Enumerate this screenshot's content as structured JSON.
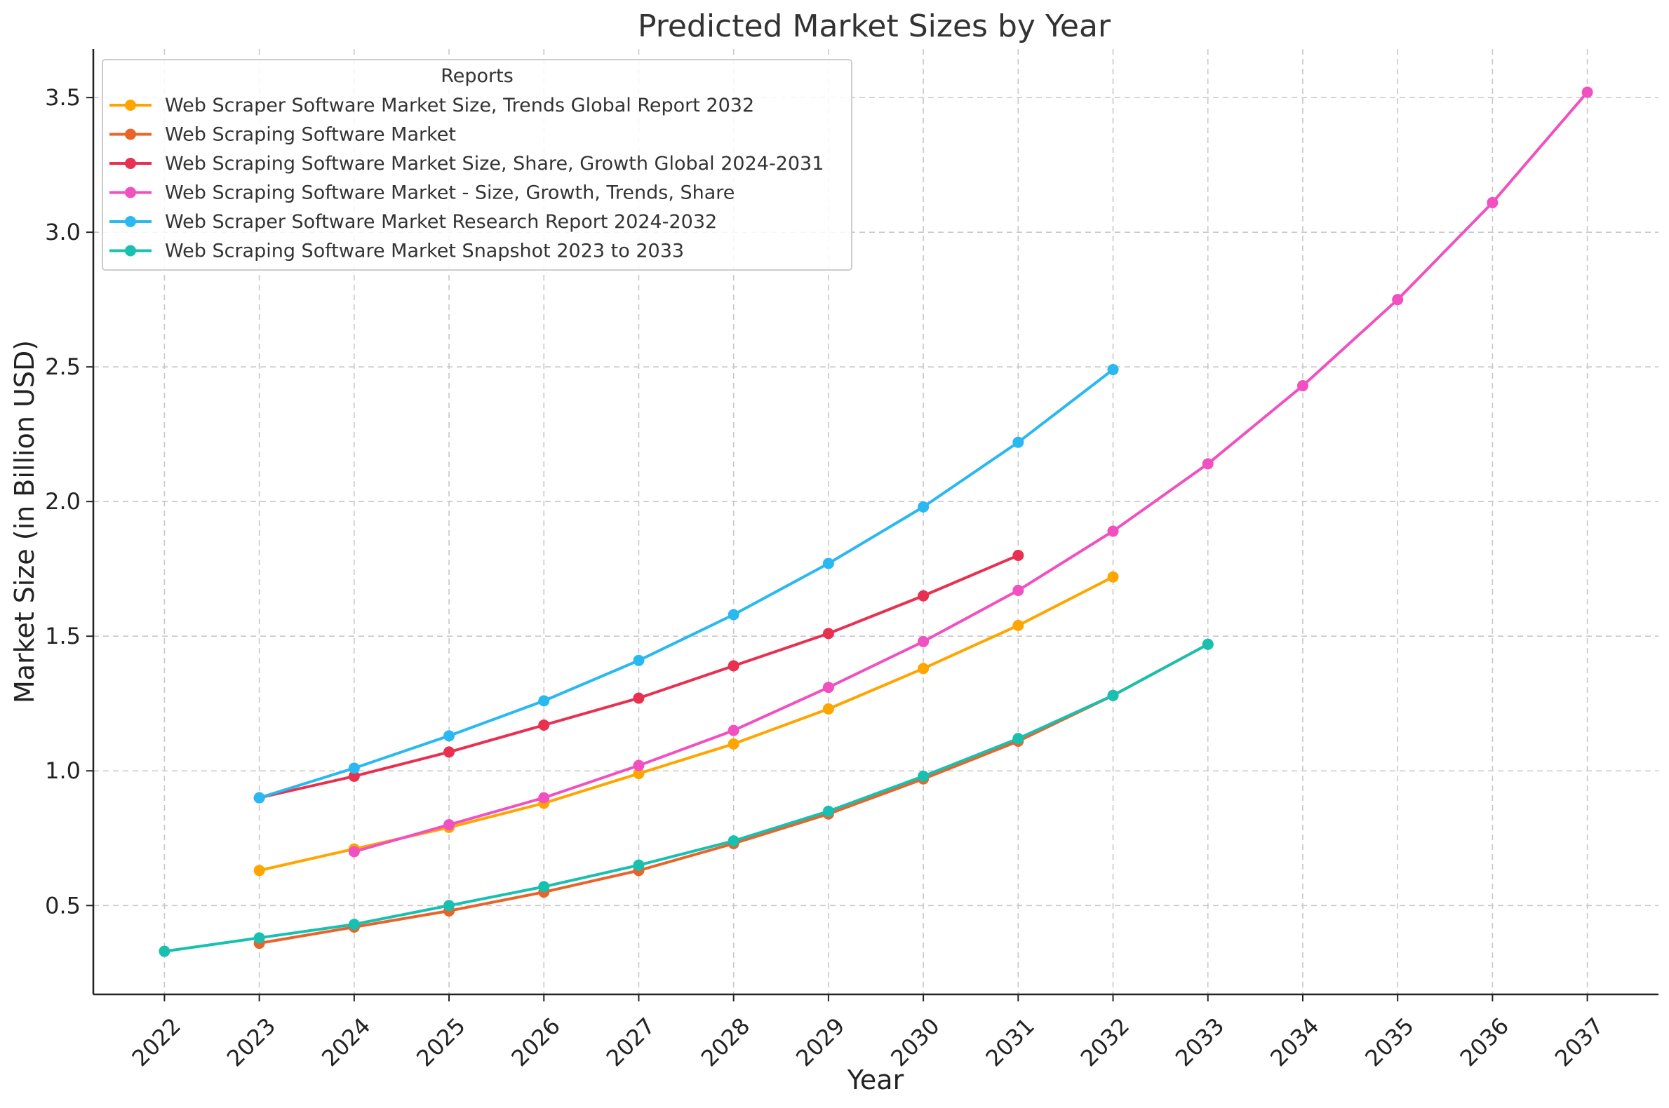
{
  "chart_data": {
    "type": "line",
    "title": "Predicted Market Sizes by Year",
    "xlabel": "Year",
    "ylabel": "Market Size (in Billion USD)",
    "x_ticks": [
      "2022",
      "2023",
      "2024",
      "2025",
      "2026",
      "2027",
      "2028",
      "2029",
      "2030",
      "2031",
      "2032",
      "2033",
      "2034",
      "2035",
      "2036",
      "2037"
    ],
    "y_ticks": [
      "0.5",
      "1.0",
      "1.5",
      "2.0",
      "2.5",
      "3.0",
      "3.5"
    ],
    "xlim": [
      2021.25,
      2037.75
    ],
    "ylim": [
      0.17,
      3.68
    ],
    "grid": true,
    "legend_title": "Reports",
    "legend_position": "top-left",
    "series": [
      {
        "name": "Web Scraper Software Market Size, Trends Global Report 2032",
        "color": "#FFA500",
        "x": [
          2023,
          2024,
          2025,
          2026,
          2027,
          2028,
          2029,
          2030,
          2031,
          2032
        ],
        "y": [
          0.63,
          0.71,
          0.79,
          0.88,
          0.99,
          1.1,
          1.23,
          1.38,
          1.54,
          1.72
        ]
      },
      {
        "name": "Web Scraping Software Market",
        "color": "#E8642A",
        "x": [
          2023,
          2024,
          2025,
          2026,
          2027,
          2028,
          2029,
          2030,
          2031,
          2032,
          2033
        ],
        "y": [
          0.36,
          0.42,
          0.48,
          0.55,
          0.63,
          0.73,
          0.84,
          0.97,
          1.11,
          1.28,
          1.47
        ]
      },
      {
        "name": "Web Scraping Software Market Size, Share, Growth Global 2024-2031",
        "color": "#E83050",
        "x": [
          2023,
          2024,
          2025,
          2026,
          2027,
          2028,
          2029,
          2030,
          2031
        ],
        "y": [
          0.9,
          0.98,
          1.07,
          1.17,
          1.27,
          1.39,
          1.51,
          1.65,
          1.8
        ]
      },
      {
        "name": "Web Scraping Software Market - Size, Growth, Trends, Share",
        "color": "#F050C0",
        "x": [
          2024,
          2025,
          2026,
          2027,
          2028,
          2029,
          2030,
          2031,
          2032,
          2033,
          2034,
          2035,
          2036,
          2037
        ],
        "y": [
          0.7,
          0.8,
          0.9,
          1.02,
          1.15,
          1.31,
          1.48,
          1.67,
          1.89,
          2.14,
          2.43,
          2.75,
          3.11,
          3.52
        ]
      },
      {
        "name": "Web Scraper Software Market Research Report 2024-2032",
        "color": "#2AB8F0",
        "x": [
          2023,
          2024,
          2025,
          2026,
          2027,
          2028,
          2029,
          2030,
          2031,
          2032
        ],
        "y": [
          0.9,
          1.01,
          1.13,
          1.26,
          1.41,
          1.58,
          1.77,
          1.98,
          2.22,
          2.49
        ]
      },
      {
        "name": "Web Scraping Software Market Snapshot 2023 to 2033",
        "color": "#18C0B0",
        "x": [
          2022,
          2023,
          2024,
          2025,
          2026,
          2027,
          2028,
          2029,
          2030,
          2031,
          2032,
          2033
        ],
        "y": [
          0.33,
          0.38,
          0.43,
          0.5,
          0.57,
          0.65,
          0.74,
          0.85,
          0.98,
          1.12,
          1.28,
          1.47
        ]
      }
    ]
  }
}
